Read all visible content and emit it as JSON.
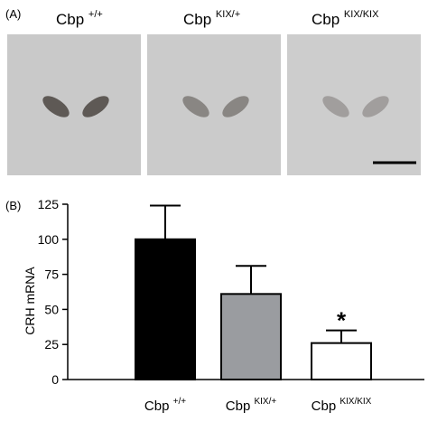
{
  "panel_a": {
    "label": "(A)",
    "images": [
      {
        "base": "Cbp",
        "sup": "+/+",
        "intensity": 0.75
      },
      {
        "base": "Cbp",
        "sup": "KIX/+",
        "intensity": 0.45
      },
      {
        "base": "Cbp",
        "sup": "KIX/KIX",
        "intensity": 0.3
      }
    ]
  },
  "panel_b": {
    "label": "(B)"
  },
  "chart_data": {
    "type": "bar",
    "categories": [
      {
        "base": "Cbp",
        "sup": "+/+"
      },
      {
        "base": "Cbp",
        "sup": "KIX/+"
      },
      {
        "base": "Cbp",
        "sup": "KIX/KIX"
      }
    ],
    "values": [
      100,
      61,
      26
    ],
    "errors": [
      24,
      20,
      9
    ],
    "bar_colors": [
      "#000000",
      "#9a9ca0",
      "#ffffff"
    ],
    "annotations": [
      "",
      "",
      "*"
    ],
    "ylabel": "CRH mRNA",
    "ylim": [
      0,
      125
    ],
    "yticks": [
      0,
      25,
      50,
      75,
      100,
      125
    ],
    "grid": false
  }
}
